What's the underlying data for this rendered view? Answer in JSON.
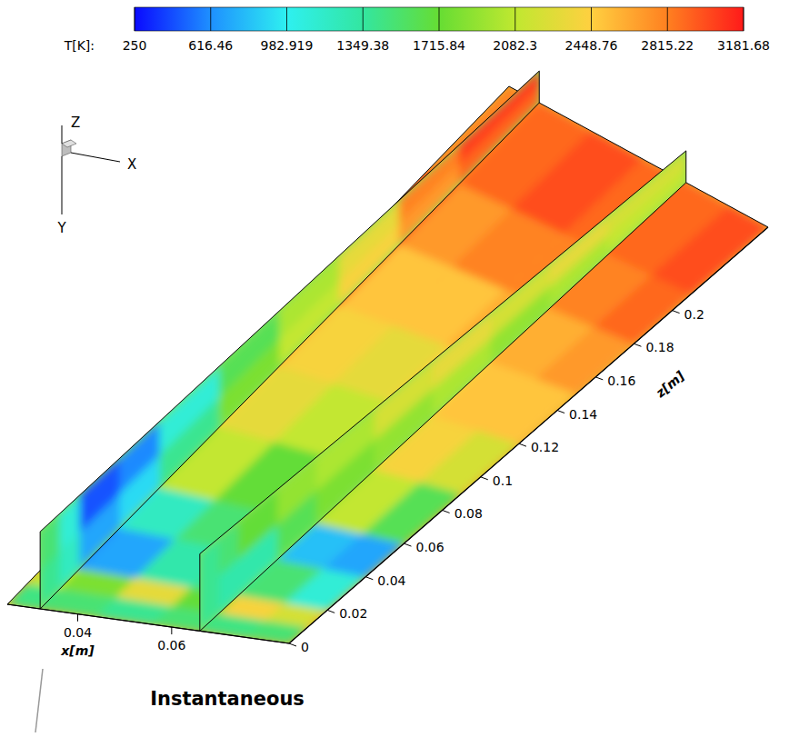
{
  "chart_data": {
    "type": "heatmap",
    "title": "Instantaneous",
    "colorbar": {
      "label": "T[K]:",
      "range": [
        250,
        3181.68
      ],
      "ticks": [
        250,
        616.46,
        982.919,
        1349.38,
        1715.84,
        2082.3,
        2448.76,
        2815.22,
        3181.68
      ]
    },
    "x_label": "x[m]",
    "xlim": [
      0.025,
      0.085
    ],
    "xticks": [
      0.04,
      0.06
    ],
    "z_label": "z[m]",
    "zlim": [
      0,
      0.25
    ],
    "zticks": [
      0,
      0.02,
      0.04,
      0.06,
      0.08,
      0.1,
      0.12,
      0.14,
      0.16,
      0.18,
      0.2
    ],
    "triad": {
      "x": "X",
      "y": "Y",
      "z": "Z"
    },
    "plate": {
      "x_edges": [
        0.025,
        0.032,
        0.044,
        0.056,
        0.066,
        0.076,
        0.085
      ],
      "z_edges": [
        0,
        0.01,
        0.02,
        0.04,
        0.06,
        0.09,
        0.12,
        0.15,
        0.18,
        0.21,
        0.25
      ],
      "T": [
        [
          1450,
          1500,
          1400,
          1500,
          1450,
          1500
        ],
        [
          2100,
          1800,
          2300,
          1700,
          2400,
          2200
        ],
        [
          600,
          700,
          1300,
          1400,
          1500,
          1100
        ],
        [
          900,
          1200,
          1500,
          1600,
          800,
          700
        ],
        [
          1900,
          2100,
          1700,
          1900,
          2100,
          1600
        ],
        [
          2400,
          2300,
          2100,
          2200,
          2400,
          2200
        ],
        [
          2600,
          2400,
          2300,
          2400,
          2500,
          2500
        ],
        [
          2900,
          2500,
          2500,
          2600,
          2600,
          2700
        ],
        [
          3000,
          2700,
          2800,
          2800,
          2800,
          2900
        ],
        [
          2800,
          2900,
          3000,
          2900,
          2900,
          3000
        ]
      ]
    },
    "planes": [
      {
        "x": 0.032,
        "z_edges": [
          0,
          0.01,
          0.02,
          0.04,
          0.06,
          0.09,
          0.12,
          0.15,
          0.18,
          0.21,
          0.25
        ],
        "h_edges": [
          0,
          0.01,
          0.02
        ],
        "T": [
          [
            1400,
            1500
          ],
          [
            1200,
            1100
          ],
          [
            700,
            450
          ],
          [
            900,
            600
          ],
          [
            1400,
            1100
          ],
          [
            1800,
            1600
          ],
          [
            2100,
            2000
          ],
          [
            2400,
            2300
          ],
          [
            2700,
            2800
          ],
          [
            2900,
            3050
          ]
        ]
      },
      {
        "x": 0.066,
        "z_edges": [
          0,
          0.01,
          0.02,
          0.04,
          0.06,
          0.09,
          0.12,
          0.15,
          0.18,
          0.21,
          0.25
        ],
        "h_edges": [
          0,
          0.01,
          0.02
        ],
        "T": [
          [
            1400,
            1400
          ],
          [
            1300,
            1500
          ],
          [
            1300,
            1700
          ],
          [
            1600,
            1900
          ],
          [
            1800,
            2000
          ],
          [
            1900,
            2200
          ],
          [
            2000,
            2300
          ],
          [
            1900,
            2200
          ],
          [
            2000,
            2300
          ],
          [
            2100,
            2200
          ]
        ]
      }
    ]
  }
}
